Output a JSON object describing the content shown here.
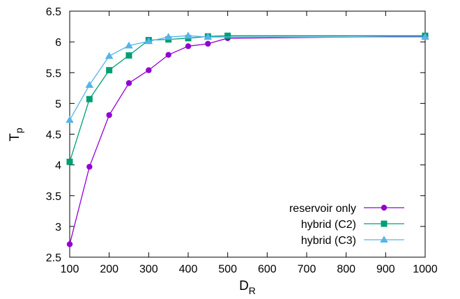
{
  "chart_data": {
    "type": "line",
    "title": "",
    "xlabel": {
      "main": "D",
      "sub": "R"
    },
    "ylabel": {
      "main": "T",
      "sub": "p"
    },
    "xlim": [
      100,
      1000
    ],
    "ylim": [
      2.5,
      6.5
    ],
    "xticks": [
      100,
      200,
      300,
      400,
      500,
      600,
      700,
      800,
      900,
      1000
    ],
    "yticks": [
      2.5,
      3,
      3.5,
      4,
      4.5,
      5,
      5.5,
      6,
      6.5
    ],
    "ytick_labels": [
      "2.5",
      "3",
      "3.5",
      "4",
      "4.5",
      "5",
      "5.5",
      "6",
      "6.5"
    ],
    "grid": false,
    "legend_position": "bottom-right",
    "series": [
      {
        "name": "reservoir only",
        "color": "#9400d3",
        "marker": "circle",
        "x": [
          100,
          150,
          200,
          250,
          300,
          350,
          400,
          450,
          500,
          1000
        ],
        "y": [
          2.71,
          3.97,
          4.81,
          5.33,
          5.54,
          5.79,
          5.93,
          5.97,
          6.06,
          6.09
        ]
      },
      {
        "name": "hybrid (C2)",
        "color": "#009e73",
        "marker": "square",
        "x": [
          100,
          150,
          200,
          250,
          300,
          350,
          400,
          450,
          500,
          1000
        ],
        "y": [
          4.05,
          5.07,
          5.54,
          5.78,
          6.03,
          6.04,
          6.06,
          6.09,
          6.1,
          6.1
        ]
      },
      {
        "name": "hybrid (C3)",
        "color": "#56b4e9",
        "marker": "triangle",
        "x": [
          100,
          150,
          200,
          250,
          300,
          350,
          400,
          450,
          1000
        ],
        "y": [
          4.73,
          5.3,
          5.77,
          5.94,
          6.01,
          6.08,
          6.1,
          6.08,
          6.08
        ]
      }
    ]
  }
}
